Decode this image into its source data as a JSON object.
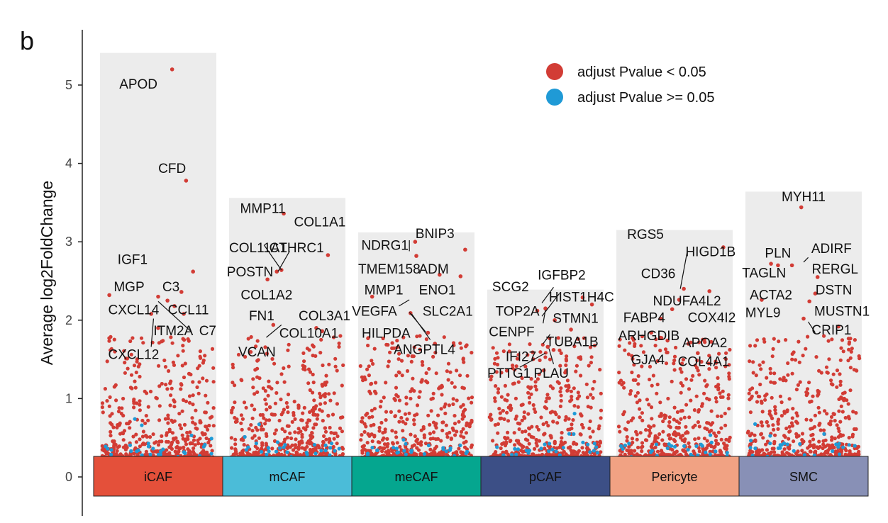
{
  "panel_label": "b",
  "chart_data": {
    "type": "scatter",
    "ylabel": "Average log2FoldChange",
    "ylim": [
      -0.5,
      5.5
    ],
    "yticks": [
      "0",
      "1",
      "2",
      "3",
      "4",
      "5"
    ],
    "categories": [
      "iCAF",
      "mCAF",
      "meCAF",
      "pCAF",
      "Pericyte",
      "SMC"
    ],
    "category_colors": [
      "#e4503a",
      "#4bbcd8",
      "#05a68f",
      "#3c4f86",
      "#f1a283",
      "#8890b6"
    ],
    "column_max": [
      5.41,
      3.56,
      3.12,
      2.39,
      3.15,
      3.64
    ],
    "legend": {
      "position": "top-right",
      "items": [
        {
          "label": "adjust Pvalue < 0.05",
          "color": "#d23c35"
        },
        {
          "label": "adjust Pvalue >= 0.05",
          "color": "#1f9ad6"
        }
      ]
    },
    "highlighted_points": [
      {
        "cat": 0,
        "off": 0.62,
        "y": 5.2
      },
      {
        "cat": 0,
        "off": 0.74,
        "y": 3.78
      },
      {
        "cat": 0,
        "off": 0.8,
        "y": 2.62
      },
      {
        "cat": 0,
        "off": 0.5,
        "y": 2.3
      },
      {
        "cat": 0,
        "off": 0.7,
        "y": 2.36
      },
      {
        "cat": 0,
        "off": 0.58,
        "y": 2.25
      },
      {
        "cat": 0,
        "off": 0.08,
        "y": 2.32
      },
      {
        "cat": 0,
        "off": 0.72,
        "y": 2.08
      },
      {
        "cat": 0,
        "off": 0.44,
        "y": 2.08
      },
      {
        "cat": 0,
        "off": 0.64,
        "y": 2.18
      },
      {
        "cat": 0,
        "off": 0.5,
        "y": 1.9
      },
      {
        "cat": 1,
        "off": 0.47,
        "y": 3.36
      },
      {
        "cat": 1,
        "off": 0.41,
        "y": 2.62
      },
      {
        "cat": 1,
        "off": 0.45,
        "y": 2.64
      },
      {
        "cat": 1,
        "off": 0.33,
        "y": 2.52
      },
      {
        "cat": 1,
        "off": 0.85,
        "y": 2.83
      },
      {
        "cat": 1,
        "off": 0.38,
        "y": 1.94
      },
      {
        "cat": 1,
        "off": 0.75,
        "y": 1.9
      },
      {
        "cat": 1,
        "off": 0.8,
        "y": 1.86
      },
      {
        "cat": 2,
        "off": 0.49,
        "y": 3.0
      },
      {
        "cat": 2,
        "off": 0.5,
        "y": 2.82
      },
      {
        "cat": 2,
        "off": 0.92,
        "y": 2.9
      },
      {
        "cat": 2,
        "off": 0.7,
        "y": 2.58
      },
      {
        "cat": 2,
        "off": 0.88,
        "y": 2.56
      },
      {
        "cat": 2,
        "off": 0.12,
        "y": 2.3
      },
      {
        "cat": 2,
        "off": 0.45,
        "y": 2.09
      },
      {
        "cat": 2,
        "off": 0.6,
        "y": 1.84
      },
      {
        "cat": 2,
        "off": 0.66,
        "y": 1.7
      },
      {
        "cat": 3,
        "off": 0.82,
        "y": 2.29
      },
      {
        "cat": 3,
        "off": 0.9,
        "y": 2.2
      },
      {
        "cat": 3,
        "off": 0.5,
        "y": 2.15
      },
      {
        "cat": 3,
        "off": 0.43,
        "y": 2.12
      },
      {
        "cat": 3,
        "off": 0.58,
        "y": 2.0
      },
      {
        "cat": 3,
        "off": 0.72,
        "y": 1.88
      },
      {
        "cat": 3,
        "off": 0.52,
        "y": 1.66
      },
      {
        "cat": 3,
        "off": 0.57,
        "y": 1.62
      },
      {
        "cat": 4,
        "off": 0.54,
        "y": 2.26
      },
      {
        "cat": 4,
        "off": 0.48,
        "y": 2.14
      },
      {
        "cat": 4,
        "off": 0.92,
        "y": 2.93
      },
      {
        "cat": 4,
        "off": 0.58,
        "y": 2.4
      },
      {
        "cat": 4,
        "off": 0.8,
        "y": 2.37
      },
      {
        "cat": 4,
        "off": 0.38,
        "y": 2.02
      },
      {
        "cat": 4,
        "off": 0.3,
        "y": 1.84
      },
      {
        "cat": 4,
        "off": 0.44,
        "y": 1.74
      },
      {
        "cat": 4,
        "off": 0.62,
        "y": 1.7
      },
      {
        "cat": 4,
        "off": 0.7,
        "y": 1.58
      },
      {
        "cat": 5,
        "off": 0.48,
        "y": 3.44
      },
      {
        "cat": 5,
        "off": 0.22,
        "y": 2.72
      },
      {
        "cat": 5,
        "off": 0.28,
        "y": 2.7
      },
      {
        "cat": 5,
        "off": 0.4,
        "y": 2.7
      },
      {
        "cat": 5,
        "off": 0.62,
        "y": 2.55
      },
      {
        "cat": 5,
        "off": 0.6,
        "y": 2.34
      },
      {
        "cat": 5,
        "off": 0.14,
        "y": 2.26
      },
      {
        "cat": 5,
        "off": 0.55,
        "y": 2.24
      },
      {
        "cat": 5,
        "off": 0.5,
        "y": 2.02
      },
      {
        "cat": 5,
        "off": 0.8,
        "y": 1.92
      }
    ],
    "gene_labels": [
      {
        "text": "APOD",
        "cat": 0,
        "off": 0.33,
        "y": 5.02
      },
      {
        "text": "CFD",
        "cat": 0,
        "off": 0.62,
        "y": 3.94
      },
      {
        "text": "IGF1",
        "cat": 0,
        "off": 0.28,
        "y": 2.78
      },
      {
        "text": "MGP",
        "cat": 0,
        "off": 0.25,
        "y": 2.43
      },
      {
        "text": "C3",
        "cat": 0,
        "off": 0.61,
        "y": 2.43
      },
      {
        "text": "CXCL14",
        "cat": 0,
        "off": 0.07,
        "y": 2.14
      },
      {
        "text": "CCL11",
        "cat": 0,
        "off": 0.76,
        "y": 2.14
      },
      {
        "text": "C7",
        "cat": 0,
        "off": 1.0,
        "y": 1.87
      },
      {
        "text": "ITM2A",
        "cat": 0,
        "off": 0.63,
        "y": 1.87
      },
      {
        "text": "CXCL12",
        "cat": 0,
        "off": 0.07,
        "y": 1.57
      },
      {
        "text": "MMP11",
        "cat": 1,
        "off": 0.29,
        "y": 3.43
      },
      {
        "text": "COL1A1",
        "cat": 1,
        "off": 0.78,
        "y": 3.26
      },
      {
        "text": "COL11A1",
        "cat": 1,
        "off": 0.0,
        "y": 2.93
      },
      {
        "text": "CTHRC1",
        "cat": 1,
        "off": 0.58,
        "y": 2.93
      },
      {
        "text": "POSTN",
        "cat": 1,
        "off": 0.18,
        "y": 2.62
      },
      {
        "text": "COL1A2",
        "cat": 1,
        "off": 0.1,
        "y": 2.33
      },
      {
        "text": "FN1",
        "cat": 1,
        "off": 0.28,
        "y": 2.06
      },
      {
        "text": "COL3A1",
        "cat": 1,
        "off": 0.82,
        "y": 2.06
      },
      {
        "text": "COL10A1",
        "cat": 1,
        "off": 0.94,
        "y": 1.84
      },
      {
        "text": "VCAN",
        "cat": 1,
        "off": 0.24,
        "y": 1.6
      },
      {
        "text": "NDRG1",
        "cat": 2,
        "off": 0.23,
        "y": 2.96
      },
      {
        "text": "BNIP3",
        "cat": 2,
        "off": 0.66,
        "y": 3.11
      },
      {
        "text": "TMEM158",
        "cat": 2,
        "off": 0.0,
        "y": 2.66
      },
      {
        "text": "ADM",
        "cat": 2,
        "off": 0.65,
        "y": 2.66
      },
      {
        "text": "MMP1",
        "cat": 2,
        "off": 0.22,
        "y": 2.39
      },
      {
        "text": "ENO1",
        "cat": 2,
        "off": 0.68,
        "y": 2.39
      },
      {
        "text": "VEGFA",
        "cat": 2,
        "off": 0.14,
        "y": 2.12
      },
      {
        "text": "SLC2A1",
        "cat": 2,
        "off": 0.77,
        "y": 2.12
      },
      {
        "text": "HILPDA",
        "cat": 2,
        "off": 0.24,
        "y": 1.84
      },
      {
        "text": "ANGPTL4",
        "cat": 2,
        "off": 0.57,
        "y": 1.63
      },
      {
        "text": "IGFBP2",
        "cat": 3,
        "off": 0.64,
        "y": 2.58
      },
      {
        "text": "SCG2",
        "cat": 3,
        "off": 0.2,
        "y": 2.43
      },
      {
        "text": "HIST1H4C",
        "cat": 3,
        "off": 0.81,
        "y": 2.3
      },
      {
        "text": "TOP2A",
        "cat": 3,
        "off": 0.26,
        "y": 2.12
      },
      {
        "text": "STMN1",
        "cat": 3,
        "off": 0.76,
        "y": 2.03
      },
      {
        "text": "CENPF",
        "cat": 3,
        "off": 0.21,
        "y": 1.86
      },
      {
        "text": "TUBA1B",
        "cat": 3,
        "off": 0.73,
        "y": 1.73
      },
      {
        "text": "IFI27",
        "cat": 3,
        "off": 0.29,
        "y": 1.54
      },
      {
        "text": "PTTG1",
        "cat": 3,
        "off": 0.0,
        "y": 1.33
      },
      {
        "text": "PLAU",
        "cat": 3,
        "off": 0.55,
        "y": 1.33
      },
      {
        "text": "RGS5",
        "cat": 4,
        "off": 0.25,
        "y": 3.1
      },
      {
        "text": "HIGD1B",
        "cat": 4,
        "off": 0.81,
        "y": 2.88
      },
      {
        "text": "CD36",
        "cat": 4,
        "off": 0.36,
        "y": 2.6
      },
      {
        "text": "NDUFA4L2",
        "cat": 4,
        "off": 0.9,
        "y": 2.25
      },
      {
        "text": "FABP4",
        "cat": 4,
        "off": 0.24,
        "y": 2.04
      },
      {
        "text": "COX4I2",
        "cat": 4,
        "off": 0.82,
        "y": 2.04
      },
      {
        "text": "ARHGDIB",
        "cat": 4,
        "off": 0.28,
        "y": 1.81
      },
      {
        "text": "APOA2",
        "cat": 4,
        "off": 0.76,
        "y": 1.72
      },
      {
        "text": "GJA4",
        "cat": 4,
        "off": 0.27,
        "y": 1.5
      },
      {
        "text": "COL4A1",
        "cat": 4,
        "off": 0.75,
        "y": 1.48
      },
      {
        "text": "MYH11",
        "cat": 5,
        "off": 0.5,
        "y": 3.58
      },
      {
        "text": "ADIRF",
        "cat": 5,
        "off": 0.74,
        "y": 2.92
      },
      {
        "text": "PLN",
        "cat": 5,
        "off": 0.28,
        "y": 2.86
      },
      {
        "text": "TAGLN",
        "cat": 5,
        "off": 0.16,
        "y": 2.61
      },
      {
        "text": "RERGL",
        "cat": 5,
        "off": 0.77,
        "y": 2.66
      },
      {
        "text": "ACTA2",
        "cat": 5,
        "off": 0.22,
        "y": 2.33
      },
      {
        "text": "DSTN",
        "cat": 5,
        "off": 0.76,
        "y": 2.39
      },
      {
        "text": "MYL9",
        "cat": 5,
        "off": 0.15,
        "y": 2.1
      },
      {
        "text": "MUSTN1",
        "cat": 5,
        "off": 0.83,
        "y": 2.12
      },
      {
        "text": "CRIP1",
        "cat": 5,
        "off": 0.74,
        "y": 1.88
      }
    ],
    "connectors": [
      {
        "from": [
          0,
          0.5,
          2.24
        ],
        "to": [
          0,
          0.78,
          1.86
        ]
      },
      {
        "from": [
          0,
          0.46,
          2.02
        ],
        "to": [
          0,
          0.44,
          1.66
        ]
      },
      {
        "from": [
          1,
          0.45,
          2.64
        ],
        "to": [
          1,
          0.3,
          2.96
        ]
      },
      {
        "from": [
          1,
          0.42,
          2.62
        ],
        "to": [
          1,
          0.52,
          2.88
        ]
      },
      {
        "from": [
          1,
          0.45,
          1.94
        ],
        "to": [
          1,
          0.32,
          1.78
        ]
      },
      {
        "from": [
          2,
          0.44,
          3.02
        ],
        "to": [
          2,
          0.44,
          2.88
        ]
      },
      {
        "from": [
          2,
          0.44,
          2.26
        ],
        "to": [
          2,
          0.35,
          2.18
        ]
      },
      {
        "from": [
          2,
          0.44,
          2.1
        ],
        "to": [
          2,
          0.58,
          1.85
        ]
      },
      {
        "from": [
          2,
          0.46,
          2.08
        ],
        "to": [
          2,
          0.62,
          1.75
        ]
      },
      {
        "from": [
          3,
          0.47,
          2.22
        ],
        "to": [
          3,
          0.57,
          2.42
        ]
      },
      {
        "from": [
          3,
          0.47,
          2.05
        ],
        "to": [
          3,
          0.62,
          2.34
        ]
      },
      {
        "from": [
          3,
          0.48,
          1.96
        ],
        "to": [
          3,
          0.5,
          2.13
        ]
      },
      {
        "from": [
          3,
          0.5,
          1.58
        ],
        "to": [
          3,
          0.28,
          1.4
        ]
      },
      {
        "from": [
          3,
          0.53,
          1.64
        ],
        "to": [
          3,
          0.57,
          1.44
        ]
      },
      {
        "from": [
          3,
          0.54,
          1.82
        ],
        "to": [
          3,
          0.48,
          1.7
        ]
      },
      {
        "from": [
          4,
          0.55,
          2.4
        ],
        "to": [
          4,
          0.61,
          2.88
        ]
      },
      {
        "from": [
          5,
          0.54,
          2.8
        ],
        "to": [
          5,
          0.5,
          2.74
        ]
      },
      {
        "from": [
          5,
          0.54,
          1.98
        ],
        "to": [
          5,
          0.6,
          1.84
        ]
      }
    ]
  }
}
